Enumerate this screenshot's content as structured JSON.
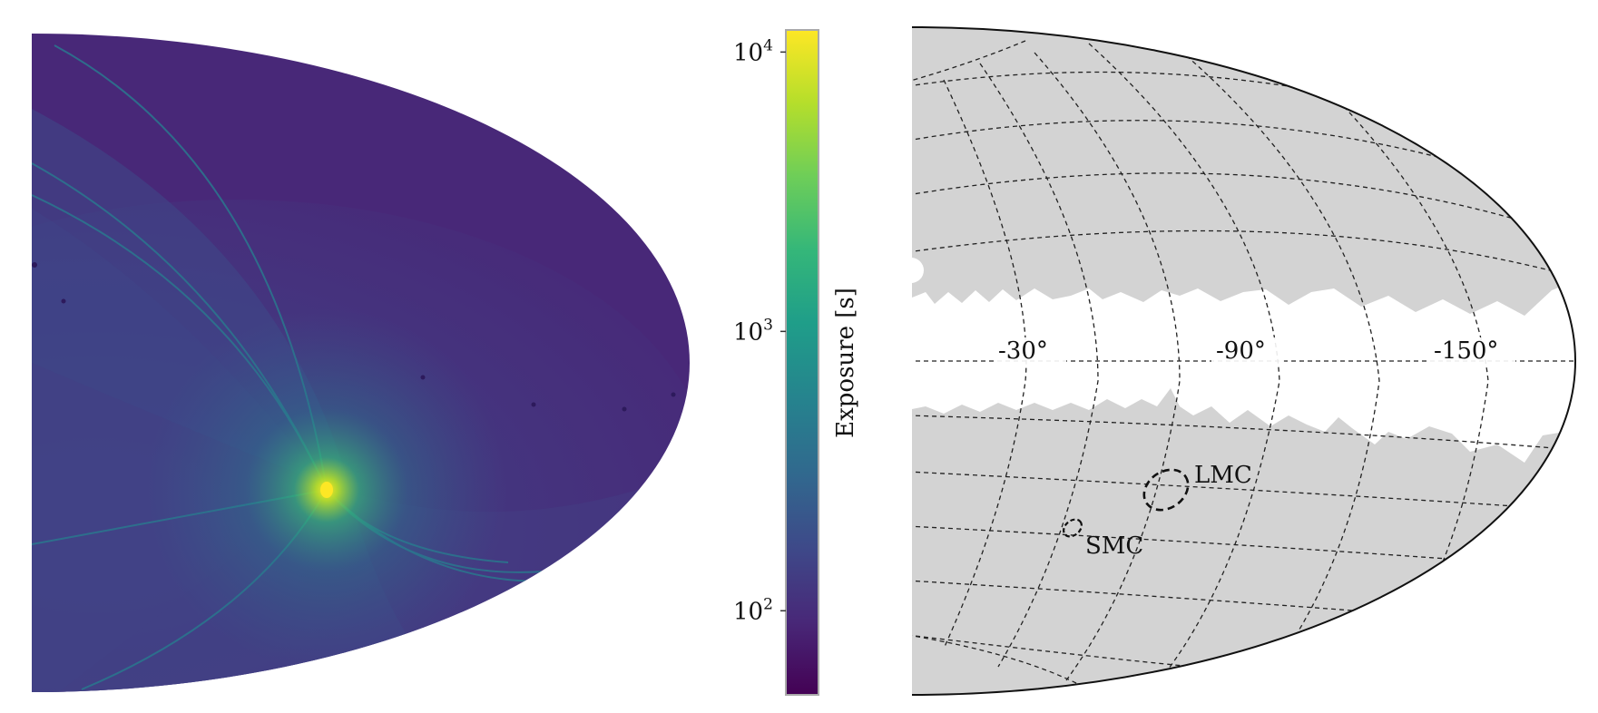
{
  "chart_data": [
    {
      "type": "heatmap",
      "panel": "left",
      "projection": "mollweide-half",
      "description_values": {
        "peak_exposure_s": 10000,
        "background_exposure_s": 60
      }
    },
    {
      "type": "colorbar",
      "scale": "log",
      "range": [
        50,
        12000
      ],
      "ticks": [
        {
          "value": 100,
          "base": "10",
          "exp": "2"
        },
        {
          "value": 1000,
          "base": "10",
          "exp": "3"
        },
        {
          "value": 10000,
          "base": "10",
          "exp": "4"
        }
      ],
      "label": "Exposure [s]",
      "colormap": [
        "#440154",
        "#482878",
        "#3e4989",
        "#31688e",
        "#26828e",
        "#1f9e89",
        "#35b779",
        "#6ece58",
        "#b5de2b",
        "#fde725"
      ]
    },
    {
      "type": "map",
      "panel": "right",
      "projection": "mollweide-half",
      "grid": true,
      "longitude_labels": [
        "-30°",
        "-90°",
        "-150°"
      ],
      "regions": [
        {
          "name": "LMC",
          "label": "LMC"
        },
        {
          "name": "SMC",
          "label": "SMC"
        }
      ],
      "colors": {
        "coverage": "#d3d3d3",
        "background": "#ffffff"
      }
    }
  ]
}
